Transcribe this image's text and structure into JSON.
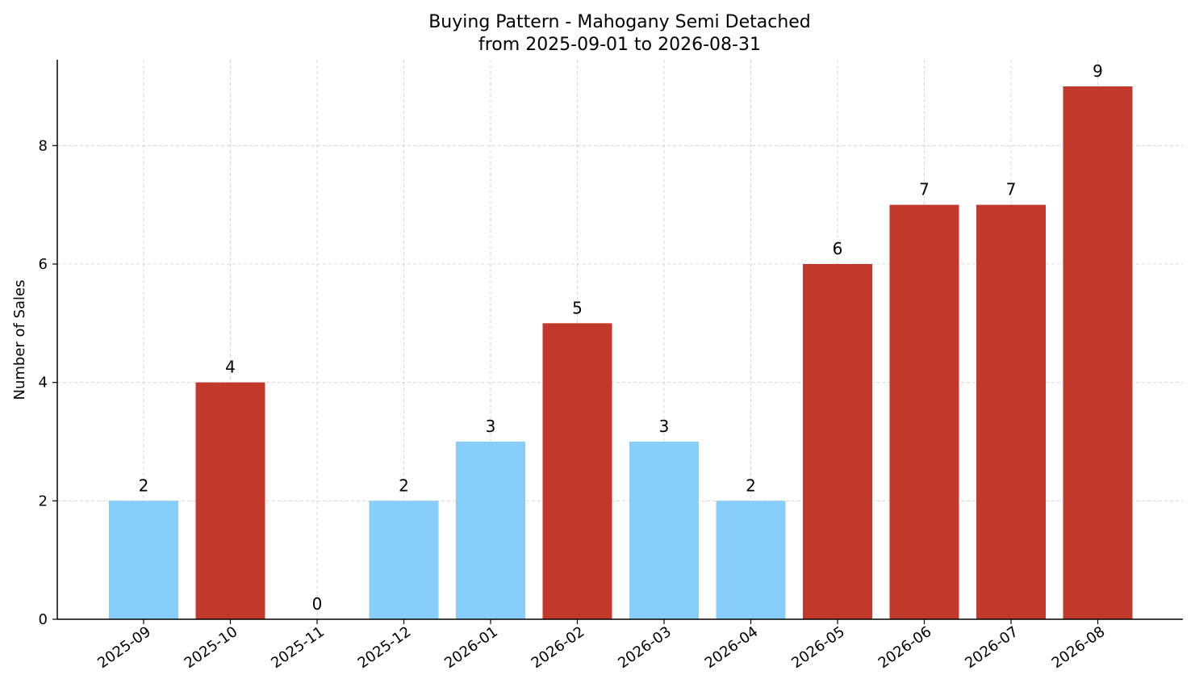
{
  "chart_data": {
    "type": "bar",
    "title": "Buying Pattern - Mahogany Semi Detached",
    "subtitle": "from 2025-09-01 to 2026-08-31",
    "xlabel": "",
    "ylabel": "Number of Sales",
    "categories": [
      "2025-09",
      "2025-10",
      "2025-11",
      "2025-12",
      "2026-01",
      "2026-02",
      "2026-03",
      "2026-04",
      "2026-05",
      "2026-06",
      "2026-07",
      "2026-08"
    ],
    "values": [
      2,
      4,
      0,
      2,
      3,
      5,
      3,
      2,
      6,
      7,
      7,
      9
    ],
    "data_labels": [
      "2",
      "4",
      "0",
      "2",
      "3",
      "5",
      "3",
      "2",
      "6",
      "7",
      "7",
      "9"
    ],
    "bar_colors": [
      "#87cefa",
      "#c0392b",
      "#87cefa",
      "#87cefa",
      "#87cefa",
      "#c0392b",
      "#87cefa",
      "#87cefa",
      "#c0392b",
      "#c0392b",
      "#c0392b",
      "#c0392b"
    ],
    "yticks": [
      0,
      2,
      4,
      6,
      8
    ],
    "ytick_labels": [
      "0",
      "2",
      "4",
      "6",
      "8"
    ],
    "ylim": [
      0,
      9.45
    ],
    "grid": true,
    "grid_color": "#b0b0b0",
    "axis_color": "#000000",
    "legend": "none"
  }
}
